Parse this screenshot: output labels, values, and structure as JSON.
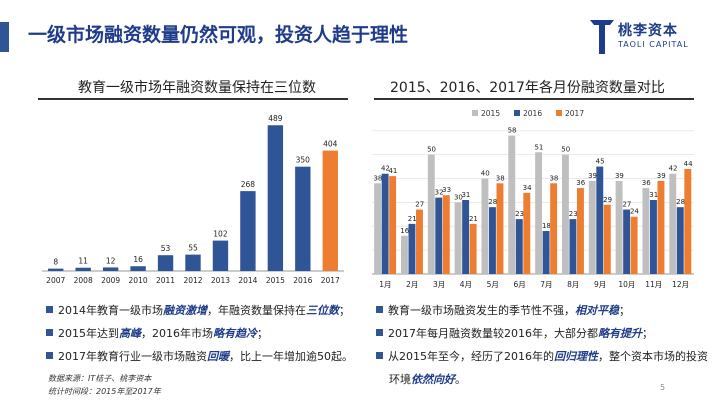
{
  "header": {
    "title": "一级市场融资数量仍然可观，投资人趋于理性",
    "logo_main": "桃李资本",
    "logo_sub": "TAOLI CAPITAL"
  },
  "left": {
    "subtitle": "教育一级市场年融资数量保持在三位数",
    "bullets": [
      {
        "pre": "2014年教育一级市场",
        "hl": "融资激增",
        "mid": "，年融资数量保持在",
        "hl2": "三位数",
        "post": "；"
      },
      {
        "pre": "2015年达到",
        "hl": "高峰",
        "mid": "，2016年市场",
        "hl2": "略有趋冷",
        "post": "；"
      },
      {
        "pre": "2017年教育行业一级市场融资",
        "hl": "回暖",
        "mid": "，比上一年增加逾50起。",
        "hl2": "",
        "post": ""
      }
    ],
    "source_1": "数据来源：IT桔子、桃李资本",
    "source_2": "统计时间段：2015年至2017年"
  },
  "right": {
    "subtitle": "2015、2016、2017年各月份融资数量对比",
    "bullets": [
      {
        "pre": "教育一级市场融资发生的季节性不强，",
        "hl": "相对平稳",
        "post": "；"
      },
      {
        "pre": "2017年每月融资数量较2016年，大部分都",
        "hl": "略有提升",
        "post": "；"
      },
      {
        "pre": "从2015年至今，经历了2016年的",
        "hl": "回归理性",
        "post": "，整个资本市场的投资"
      },
      {
        "pre": "环境",
        "hl": "依然向好",
        "post": "。"
      }
    ]
  },
  "page_number": "5",
  "chart_data": [
    {
      "type": "bar",
      "title": "教育一级市场年融资数量保持在三位数",
      "categories": [
        "2007",
        "2008",
        "2009",
        "2010",
        "2011",
        "2012",
        "2013",
        "2014",
        "2015",
        "2016",
        "2017"
      ],
      "values": [
        8,
        11,
        12,
        16,
        53,
        55,
        102,
        268,
        489,
        350,
        404
      ],
      "colors": {
        "default": "#2f5597",
        "highlight": "#ed7d31"
      },
      "highlight_category": "2017",
      "ylim": [
        0,
        520
      ],
      "grid": false,
      "legend": "none"
    },
    {
      "type": "bar",
      "title": "2015、2016、2017年各月份融资数量对比",
      "categories": [
        "1月",
        "2月",
        "3月",
        "4月",
        "5月",
        "6月",
        "7月",
        "8月",
        "9月",
        "10月",
        "11月",
        "12月"
      ],
      "series": [
        {
          "name": "2015",
          "color": "#bfbfbf",
          "values": [
            38,
            16,
            50,
            30,
            40,
            58,
            51,
            50,
            39,
            39,
            36,
            42
          ]
        },
        {
          "name": "2016",
          "color": "#2f5597",
          "values": [
            42,
            21,
            32,
            31,
            28,
            23,
            18,
            23,
            45,
            27,
            31,
            28
          ]
        },
        {
          "name": "2017",
          "color": "#ed7d31",
          "values": [
            41,
            27,
            33,
            21,
            38,
            34,
            38,
            36,
            29,
            24,
            39,
            44
          ]
        }
      ],
      "ylim": [
        0,
        62
      ],
      "grid": true,
      "legend": "top"
    }
  ]
}
